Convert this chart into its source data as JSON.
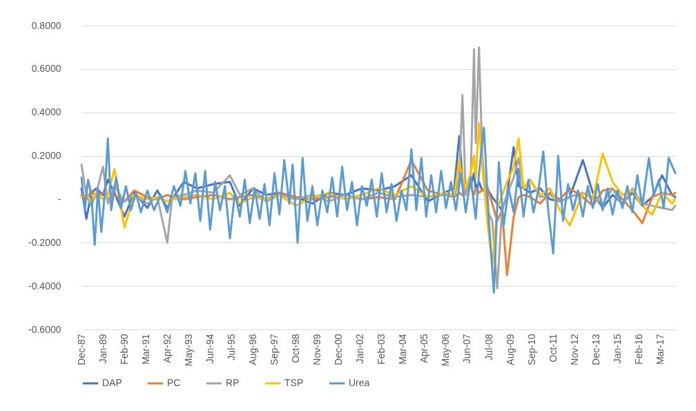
{
  "chart_data": {
    "type": "line",
    "xlim": [
      "1987-12",
      "2017-12"
    ],
    "xticks": [
      {
        "value": "1987-12",
        "label": "Dec-87"
      },
      {
        "value": "1989-01",
        "label": "Jan-89"
      },
      {
        "value": "1990-02",
        "label": "Feb-90"
      },
      {
        "value": "1991-03",
        "label": "Mar-91"
      },
      {
        "value": "1992-04",
        "label": "Apr-92"
      },
      {
        "value": "1993-05",
        "label": "May-93"
      },
      {
        "value": "1994-06",
        "label": "Jun-94"
      },
      {
        "value": "1995-07",
        "label": "Jul-95"
      },
      {
        "value": "1996-08",
        "label": "Aug-96"
      },
      {
        "value": "1997-09",
        "label": "Sep-97"
      },
      {
        "value": "1998-10",
        "label": "Oct-98"
      },
      {
        "value": "1999-11",
        "label": "Nov-99"
      },
      {
        "value": "2000-12",
        "label": "Dec-00"
      },
      {
        "value": "2002-01",
        "label": "Jan-02"
      },
      {
        "value": "2003-02",
        "label": "Feb-03"
      },
      {
        "value": "2004-03",
        "label": "Mar-04"
      },
      {
        "value": "2005-04",
        "label": "Apr-05"
      },
      {
        "value": "2006-05",
        "label": "May-06"
      },
      {
        "value": "2007-06",
        "label": "Jun-07"
      },
      {
        "value": "2008-07",
        "label": "Jul-08"
      },
      {
        "value": "2009-08",
        "label": "Aug-09"
      },
      {
        "value": "2010-09",
        "label": "Sep-10"
      },
      {
        "value": "2011-10",
        "label": "Oct-11"
      },
      {
        "value": "2012-11",
        "label": "Nov-12"
      },
      {
        "value": "2013-12",
        "label": "Dec-13"
      },
      {
        "value": "2015-01",
        "label": "Jan-15"
      },
      {
        "value": "2016-02",
        "label": "Feb-16"
      },
      {
        "value": "2017-03",
        "label": "Mar-17"
      }
    ],
    "ylim": [
      -0.6,
      0.8
    ],
    "yticks": [
      {
        "value": -0.6,
        "label": "-0.6000"
      },
      {
        "value": -0.4,
        "label": "-0.4000"
      },
      {
        "value": -0.2,
        "label": "-0.2000"
      },
      {
        "value": 0,
        "label": "-"
      },
      {
        "value": 0.2,
        "label": "0.2000"
      },
      {
        "value": 0.4,
        "label": "0.4000"
      },
      {
        "value": 0.6,
        "label": "0.6000"
      },
      {
        "value": 0.8,
        "label": "0.8000"
      }
    ],
    "grid": "y",
    "legend": "bottom",
    "line_style": "solid",
    "marker": "none",
    "series": [
      {
        "name": "DAP",
        "color": "#4472c4",
        "x": [
          "1987-12",
          "1988-03",
          "1988-06",
          "1988-09",
          "1989-01",
          "1989-04",
          "1989-08",
          "1990-02",
          "1990-08",
          "1991-04",
          "1991-10",
          "1992-04",
          "1992-07",
          "1993-02",
          "1993-10",
          "1994-08",
          "1995-06",
          "1995-12",
          "1996-08",
          "1997-04",
          "1997-12",
          "1998-10",
          "1999-08",
          "2000-06",
          "2001-04",
          "2002-02",
          "2002-12",
          "2003-10",
          "2004-08",
          "2005-06",
          "2006-04",
          "2006-10",
          "2007-01",
          "2007-03",
          "2007-05",
          "2007-08",
          "2007-10",
          "2007-11",
          "2008-01",
          "2008-03",
          "2008-06",
          "2008-09",
          "2008-12",
          "2009-03",
          "2009-06",
          "2009-10",
          "2010-01",
          "2010-04",
          "2010-08",
          "2011-02",
          "2011-08",
          "2012-02",
          "2012-08",
          "2013-04",
          "2013-10",
          "2014-04",
          "2014-10",
          "2015-04",
          "2015-10",
          "2016-04",
          "2016-10",
          "2017-04",
          "2017-10",
          "2017-12"
        ],
        "values": [
          0.05,
          -0.09,
          0.03,
          0.05,
          0.02,
          0.09,
          0.03,
          -0.08,
          0.03,
          -0.04,
          0.04,
          -0.04,
          0.0,
          0.08,
          0.05,
          0.07,
          0.08,
          -0.03,
          0.05,
          0.02,
          0.03,
          0.01,
          -0.02,
          0.03,
          0.02,
          0.05,
          0.04,
          0.06,
          0.11,
          -0.01,
          0.03,
          0.05,
          0.29,
          0.1,
          0.04,
          0.06,
          0.12,
          0.05,
          0.08,
          0.04,
          0.05,
          0.01,
          -0.02,
          -0.05,
          0.02,
          0.24,
          0.06,
          0.05,
          0.03,
          0.05,
          0.0,
          -0.01,
          0.01,
          0.18,
          0.03,
          -0.04,
          0.02,
          -0.02,
          0.03,
          -0.03,
          0.01,
          0.11,
          0.02,
          0.01
        ]
      },
      {
        "name": "PC",
        "color": "#ed7d31",
        "x": [
          "1987-12",
          "1988-03",
          "1988-06",
          "1988-09",
          "1989-01",
          "1989-04",
          "1989-08",
          "1990-02",
          "1990-08",
          "1991-04",
          "1991-10",
          "1992-04",
          "1992-07",
          "1993-02",
          "1993-10",
          "1994-08",
          "1995-06",
          "1995-12",
          "1996-08",
          "1997-04",
          "1997-12",
          "1998-10",
          "1999-08",
          "2000-06",
          "2001-04",
          "2002-02",
          "2002-12",
          "2003-10",
          "2004-08",
          "2005-06",
          "2006-04",
          "2006-10",
          "2007-01",
          "2007-03",
          "2007-05",
          "2007-08",
          "2007-10",
          "2007-11",
          "2008-01",
          "2008-03",
          "2008-06",
          "2008-09",
          "2008-12",
          "2009-03",
          "2009-06",
          "2009-10",
          "2010-01",
          "2010-04",
          "2010-08",
          "2011-02",
          "2011-08",
          "2012-02",
          "2012-08",
          "2013-04",
          "2013-10",
          "2014-04",
          "2014-10",
          "2015-04",
          "2015-10",
          "2016-04",
          "2016-10",
          "2017-04",
          "2017-10",
          "2017-12"
        ],
        "values": [
          0.02,
          0.0,
          0.04,
          0.01,
          0.03,
          0.0,
          0.02,
          -0.01,
          0.04,
          0.01,
          0.0,
          0.02,
          0.01,
          0.0,
          0.01,
          0.02,
          0.0,
          0.01,
          0.02,
          0.0,
          0.03,
          0.01,
          0.0,
          0.01,
          0.02,
          0.0,
          0.01,
          0.0,
          0.18,
          0.04,
          0.02,
          0.01,
          0.03,
          0.02,
          0.04,
          0.06,
          0.02,
          0.05,
          0.03,
          0.04,
          0.06,
          -0.02,
          -0.1,
          -0.05,
          -0.35,
          -0.08,
          0.01,
          0.02,
          0.01,
          -0.02,
          0.03,
          0.0,
          0.05,
          0.01,
          -0.03,
          0.04,
          0.05,
          0.0,
          -0.05,
          -0.11,
          0.01,
          0.03,
          0.02,
          0.03
        ]
      },
      {
        "name": "RP",
        "color": "#a5a5a5",
        "x": [
          "1987-12",
          "1988-03",
          "1988-06",
          "1988-09",
          "1989-01",
          "1989-04",
          "1989-08",
          "1990-02",
          "1990-08",
          "1991-04",
          "1991-10",
          "1992-04",
          "1992-07",
          "1993-02",
          "1993-10",
          "1994-08",
          "1995-06",
          "1995-12",
          "1996-08",
          "1997-04",
          "1997-12",
          "1998-10",
          "1999-08",
          "2000-06",
          "2001-04",
          "2002-02",
          "2002-12",
          "2003-10",
          "2004-08",
          "2005-06",
          "2006-04",
          "2006-10",
          "2007-01",
          "2007-03",
          "2007-05",
          "2007-08",
          "2007-10",
          "2007-11",
          "2008-01",
          "2008-03",
          "2008-06",
          "2008-09",
          "2008-12",
          "2009-03",
          "2009-06",
          "2009-10",
          "2010-01",
          "2010-04",
          "2010-08",
          "2011-02",
          "2011-08",
          "2012-02",
          "2012-08",
          "2013-04",
          "2013-10",
          "2014-04",
          "2014-10",
          "2015-04",
          "2015-10",
          "2016-04",
          "2016-10",
          "2017-04",
          "2017-10",
          "2017-12"
        ],
        "values": [
          0.16,
          0.02,
          -0.03,
          0.03,
          0.15,
          -0.02,
          0.06,
          -0.01,
          0.02,
          -0.02,
          0.01,
          -0.2,
          0.01,
          0.02,
          0.04,
          0.03,
          0.11,
          0.02,
          0.05,
          -0.01,
          0.02,
          0.0,
          0.02,
          -0.01,
          0.02,
          0.0,
          0.03,
          0.01,
          0.02,
          0.01,
          0.02,
          0.01,
          0.1,
          0.48,
          0.02,
          0.1,
          0.69,
          0.26,
          0.7,
          0.2,
          -0.05,
          -0.1,
          -0.41,
          -0.05,
          0.02,
          0.1,
          0.19,
          0.05,
          0.09,
          0.01,
          0.02,
          -0.01,
          0.01,
          0.03,
          0.01,
          -0.02,
          0.05,
          -0.03,
          0.05,
          -0.02,
          -0.03,
          -0.04,
          -0.05,
          -0.03
        ]
      },
      {
        "name": "TSP",
        "color": "#ffc000",
        "x": [
          "1987-12",
          "1988-03",
          "1988-06",
          "1988-09",
          "1989-01",
          "1989-04",
          "1989-08",
          "1990-02",
          "1990-08",
          "1991-04",
          "1991-10",
          "1992-04",
          "1992-07",
          "1993-02",
          "1993-10",
          "1994-08",
          "1995-06",
          "1995-12",
          "1996-08",
          "1997-04",
          "1997-12",
          "1998-10",
          "1999-08",
          "2000-06",
          "2001-04",
          "2002-02",
          "2002-12",
          "2003-10",
          "2004-08",
          "2005-06",
          "2006-04",
          "2006-10",
          "2007-01",
          "2007-03",
          "2007-05",
          "2007-08",
          "2007-10",
          "2007-11",
          "2008-01",
          "2008-03",
          "2008-06",
          "2008-09",
          "2008-12",
          "2009-03",
          "2009-06",
          "2009-10",
          "2010-01",
          "2010-04",
          "2010-08",
          "2011-02",
          "2011-08",
          "2012-02",
          "2012-08",
          "2013-04",
          "2013-10",
          "2014-04",
          "2014-10",
          "2015-04",
          "2015-10",
          "2016-04",
          "2016-10",
          "2017-04",
          "2017-10",
          "2017-12"
        ],
        "values": [
          0.01,
          0.02,
          -0.01,
          0.03,
          0.0,
          0.02,
          0.14,
          -0.13,
          0.02,
          0.0,
          0.01,
          -0.01,
          0.0,
          0.01,
          0.02,
          0.0,
          0.03,
          -0.02,
          0.01,
          0.0,
          0.02,
          -0.03,
          0.01,
          0.03,
          0.0,
          0.02,
          0.05,
          0.02,
          0.06,
          0.01,
          0.03,
          0.02,
          0.18,
          0.1,
          0.05,
          0.12,
          0.2,
          0.1,
          0.35,
          0.15,
          -0.1,
          -0.3,
          -0.05,
          0.02,
          0.08,
          0.15,
          0.28,
          0.05,
          0.09,
          0.02,
          0.05,
          -0.05,
          -0.12,
          0.03,
          0.0,
          0.21,
          0.08,
          0.02,
          0.04,
          -0.03,
          -0.07,
          0.03,
          -0.02,
          0.0
        ]
      },
      {
        "name": "Urea",
        "color": "#5b9bd5",
        "x": [
          "1987-12",
          "1988-02",
          "1988-04",
          "1988-06",
          "1988-08",
          "1988-10",
          "1988-12",
          "1989-02",
          "1989-04",
          "1989-06",
          "1989-09",
          "1989-12",
          "1990-03",
          "1990-06",
          "1990-09",
          "1990-12",
          "1991-04",
          "1991-08",
          "1991-12",
          "1992-04",
          "1992-08",
          "1992-12",
          "1993-03",
          "1993-06",
          "1993-09",
          "1993-12",
          "1994-03",
          "1994-06",
          "1994-09",
          "1994-12",
          "1995-03",
          "1995-06",
          "1995-09",
          "1995-12",
          "1996-03",
          "1996-06",
          "1996-09",
          "1996-12",
          "1997-03",
          "1997-06",
          "1997-09",
          "1997-12",
          "1998-03",
          "1998-06",
          "1998-08",
          "1998-11",
          "1999-02",
          "1999-05",
          "1999-08",
          "1999-11",
          "2000-02",
          "2000-05",
          "2000-08",
          "2000-11",
          "2001-02",
          "2001-05",
          "2001-08",
          "2001-11",
          "2002-02",
          "2002-05",
          "2002-08",
          "2002-11",
          "2003-02",
          "2003-05",
          "2003-08",
          "2003-11",
          "2004-02",
          "2004-05",
          "2004-08",
          "2004-11",
          "2005-02",
          "2005-05",
          "2005-08",
          "2005-11",
          "2006-02",
          "2006-05",
          "2006-08",
          "2006-11",
          "2007-02",
          "2007-05",
          "2007-08",
          "2007-11",
          "2008-01",
          "2008-04",
          "2008-07",
          "2008-10",
          "2009-01",
          "2009-04",
          "2009-07",
          "2009-10",
          "2010-01",
          "2010-04",
          "2010-07",
          "2010-10",
          "2011-01",
          "2011-04",
          "2011-07",
          "2011-10",
          "2012-01",
          "2012-04",
          "2012-07",
          "2012-10",
          "2013-01",
          "2013-04",
          "2013-07",
          "2013-10",
          "2014-01",
          "2014-04",
          "2014-07",
          "2014-10",
          "2015-01",
          "2015-04",
          "2015-07",
          "2015-10",
          "2016-01",
          "2016-04",
          "2016-08",
          "2016-11",
          "2017-02",
          "2017-05",
          "2017-08",
          "2017-12"
        ],
        "values": [
          0.1,
          -0.05,
          0.09,
          0.02,
          -0.21,
          0.05,
          -0.15,
          0.02,
          0.28,
          -0.05,
          0.1,
          -0.04,
          0.06,
          -0.05,
          0.03,
          -0.06,
          0.04,
          -0.05,
          0.02,
          -0.06,
          0.06,
          -0.03,
          0.13,
          -0.02,
          0.12,
          -0.1,
          0.13,
          -0.14,
          0.08,
          -0.05,
          0.06,
          -0.18,
          0.03,
          -0.08,
          0.09,
          -0.11,
          0.05,
          -0.09,
          0.07,
          -0.12,
          0.12,
          -0.07,
          0.18,
          -0.02,
          0.16,
          -0.2,
          0.19,
          -0.1,
          0.06,
          -0.12,
          0.04,
          -0.06,
          0.1,
          -0.08,
          0.15,
          -0.05,
          0.08,
          -0.12,
          0.06,
          -0.03,
          0.09,
          -0.08,
          0.12,
          -0.06,
          0.07,
          -0.1,
          0.04,
          -0.05,
          0.23,
          -0.05,
          0.19,
          -0.08,
          0.11,
          -0.06,
          0.13,
          -0.04,
          0.08,
          -0.05,
          0.12,
          -0.06,
          0.1,
          -0.09,
          0.12,
          0.33,
          -0.1,
          -0.43,
          0.17,
          -0.12,
          0.05,
          -0.06,
          0.14,
          -0.08,
          0.09,
          -0.06,
          0.04,
          0.22,
          -0.05,
          -0.25,
          0.2,
          -0.1,
          0.07,
          -0.05,
          0.04,
          -0.08,
          0.06,
          -0.04,
          0.07,
          -0.05,
          0.05,
          -0.07,
          0.04,
          -0.04,
          0.06,
          -0.06,
          0.11,
          -0.03,
          0.19,
          0.02,
          0.09,
          -0.04,
          0.19,
          0.12
        ]
      }
    ]
  }
}
